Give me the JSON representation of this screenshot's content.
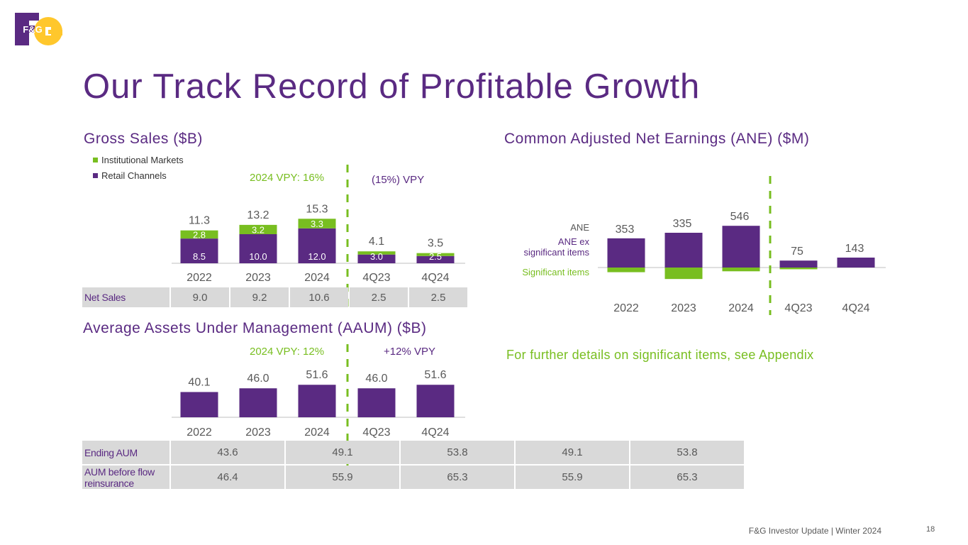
{
  "brand": {
    "logo_text": "F&G",
    "purple": "#5a2a82",
    "green": "#78be20",
    "yellow": "#ffc72c"
  },
  "page_title": "Our Track Record of Profitable Growth",
  "gross_sales": {
    "title": "Gross Sales ($B)",
    "legend": {
      "institutional": "Institutional Markets",
      "retail": "Retail Channels"
    },
    "vpy_annual": "2024 VPY: 16%",
    "vpy_quarter": "(15%) VPY"
  },
  "net_sales": {
    "label": "Net Sales",
    "values": [
      "9.0",
      "9.2",
      "10.6",
      "2.5",
      "2.5"
    ]
  },
  "aaum": {
    "title": "Average Assets Under Management (AAUM) ($B)",
    "vpy_annual": "2024 VPY: 12%",
    "vpy_quarter": "+12% VPY"
  },
  "aum_table": {
    "rows": [
      {
        "label": "Ending AUM",
        "values": [
          "43.6",
          "49.1",
          "53.8",
          "49.1",
          "53.8"
        ]
      },
      {
        "label": "AUM before flow reinsurance",
        "values": [
          "46.4",
          "55.9",
          "65.3",
          "55.9",
          "65.3"
        ]
      }
    ]
  },
  "ane": {
    "title": "Common Adjusted Net Earnings (ANE) ($M)",
    "legend": {
      "ane": "ANE",
      "ane_ex": "ANE ex significant items",
      "significant": "Significant items"
    }
  },
  "appendix_note": "For further details on significant items, see Appendix",
  "footer": {
    "text": "F&G Investor Update | Winter 2024",
    "page": "18"
  },
  "chart_data": [
    {
      "type": "bar",
      "title": "Gross Sales ($B)",
      "stacked": true,
      "categories": [
        "2022",
        "2023",
        "2024",
        "4Q23",
        "4Q24"
      ],
      "series": [
        {
          "name": "Retail Channels",
          "values": [
            8.5,
            10.0,
            12.0,
            3.0,
            2.5
          ],
          "labels": [
            "8.5",
            "10.0",
            "12.0",
            "3.0",
            "2.5"
          ]
        },
        {
          "name": "Institutional Markets",
          "values": [
            2.8,
            3.2,
            3.3,
            1.1,
            1.0
          ],
          "labels": [
            "2.8",
            "3.2",
            "3.3",
            "",
            ""
          ]
        }
      ],
      "totals": [
        "11.3",
        "13.2",
        "15.3",
        "4.1",
        "3.5"
      ],
      "ylim": [
        0,
        16
      ]
    },
    {
      "type": "bar",
      "title": "Average Assets Under Management (AAUM) ($B)",
      "categories": [
        "2022",
        "2023",
        "2024",
        "4Q23",
        "4Q24"
      ],
      "values": [
        40.1,
        46.0,
        51.6,
        46.0,
        51.6
      ],
      "labels": [
        "40.1",
        "46.0",
        "51.6",
        "46.0",
        "51.6"
      ],
      "ylim": [
        0,
        55
      ]
    },
    {
      "type": "bar",
      "title": "Common Adjusted Net Earnings (ANE) ($M)",
      "categories": [
        "2022",
        "2023",
        "2024",
        "4Q23",
        "4Q24"
      ],
      "series": [
        {
          "name": "ANE ex significant items",
          "values": [
            420,
            500,
            600,
            100,
            143
          ]
        },
        {
          "name": "Significant items",
          "values": [
            -67,
            -165,
            -54,
            -25,
            0
          ]
        }
      ],
      "ane_labels": [
        "353",
        "335",
        "546",
        "75",
        "143"
      ],
      "ylim": [
        -200,
        650
      ]
    }
  ]
}
